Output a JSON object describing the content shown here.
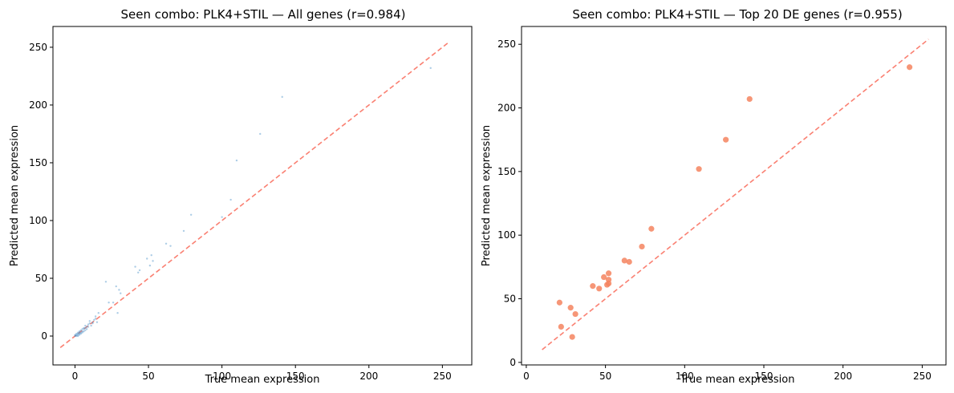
{
  "colors": {
    "identity_line": "#fa8072",
    "all_points": "#4a90c8",
    "top_points": "#f4845f",
    "axes": "#000000",
    "background": "#ffffff"
  },
  "chart_data": [
    {
      "type": "scatter",
      "title": "Seen combo: PLK4+STIL — All genes (r=0.984)",
      "xlabel": "True mean expression",
      "ylabel": "Predicted mean expression",
      "xlim": [
        -15,
        270
      ],
      "ylim": [
        -25,
        268
      ],
      "xticks": [
        0,
        50,
        100,
        150,
        200,
        250
      ],
      "yticks": [
        0,
        50,
        100,
        150,
        200,
        250
      ],
      "identity_line": {
        "from": -10,
        "to": 255,
        "style": "dashed"
      },
      "grid": false,
      "legend": "none",
      "points": [
        [
          242,
          232
        ],
        [
          141,
          207
        ],
        [
          126,
          175
        ],
        [
          110,
          152
        ],
        [
          106,
          118
        ],
        [
          79,
          105
        ],
        [
          100,
          103
        ],
        [
          74,
          91
        ],
        [
          62,
          80
        ],
        [
          65,
          78
        ],
        [
          52,
          70
        ],
        [
          49,
          67
        ],
        [
          53,
          65
        ],
        [
          51,
          61
        ],
        [
          41,
          60
        ],
        [
          44,
          57
        ],
        [
          43,
          55
        ],
        [
          21,
          47
        ],
        [
          28,
          43
        ],
        [
          30,
          40
        ],
        [
          31,
          37
        ],
        [
          23,
          29
        ],
        [
          26,
          29
        ],
        [
          29,
          20
        ],
        [
          16,
          20
        ],
        [
          14,
          17
        ],
        [
          13,
          14
        ],
        [
          10,
          13
        ],
        [
          12,
          11
        ],
        [
          15,
          12
        ],
        [
          9,
          10
        ],
        [
          7,
          9
        ],
        [
          8,
          8
        ],
        [
          11,
          9
        ],
        [
          6,
          7
        ],
        [
          5,
          6
        ],
        [
          7,
          5
        ],
        [
          4,
          5
        ],
        [
          6,
          4
        ],
        [
          3,
          4
        ],
        [
          5,
          3
        ],
        [
          4,
          2
        ],
        [
          2,
          3
        ],
        [
          3,
          2
        ],
        [
          2,
          1
        ],
        [
          1,
          2
        ],
        [
          1,
          1
        ],
        [
          0.5,
          0.5
        ],
        [
          2,
          2
        ],
        [
          3,
          1
        ],
        [
          1,
          0
        ],
        [
          0,
          1
        ],
        [
          4,
          3
        ],
        [
          5,
          4
        ],
        [
          6,
          6
        ],
        [
          8,
          6
        ],
        [
          9,
          8
        ],
        [
          10,
          11
        ],
        [
          12,
          12
        ],
        [
          14,
          15
        ],
        [
          2,
          0
        ],
        [
          0,
          0
        ],
        [
          3,
          3
        ],
        [
          7,
          7
        ]
      ]
    },
    {
      "type": "scatter",
      "title": "Seen combo: PLK4+STIL — Top 20 DE genes (r=0.955)",
      "xlabel": "True mean expression",
      "ylabel": "Predicted mean expression",
      "xlim": [
        -3,
        265
      ],
      "ylim": [
        -2,
        264
      ],
      "xticks": [
        0,
        50,
        100,
        150,
        200,
        250
      ],
      "yticks": [
        0,
        50,
        100,
        150,
        200,
        250
      ],
      "identity_line": {
        "from": 10,
        "to": 254,
        "style": "dashed"
      },
      "grid": false,
      "legend": "none",
      "points": [
        [
          242,
          232
        ],
        [
          141,
          207
        ],
        [
          126,
          175
        ],
        [
          109,
          152
        ],
        [
          79,
          105
        ],
        [
          73,
          91
        ],
        [
          62,
          80
        ],
        [
          65,
          79
        ],
        [
          52,
          70
        ],
        [
          49,
          67
        ],
        [
          52,
          65
        ],
        [
          52,
          62
        ],
        [
          51,
          61
        ],
        [
          42,
          60
        ],
        [
          46,
          58
        ],
        [
          21,
          47
        ],
        [
          28,
          43
        ],
        [
          31,
          38
        ],
        [
          22,
          28
        ],
        [
          29,
          20
        ]
      ]
    }
  ]
}
